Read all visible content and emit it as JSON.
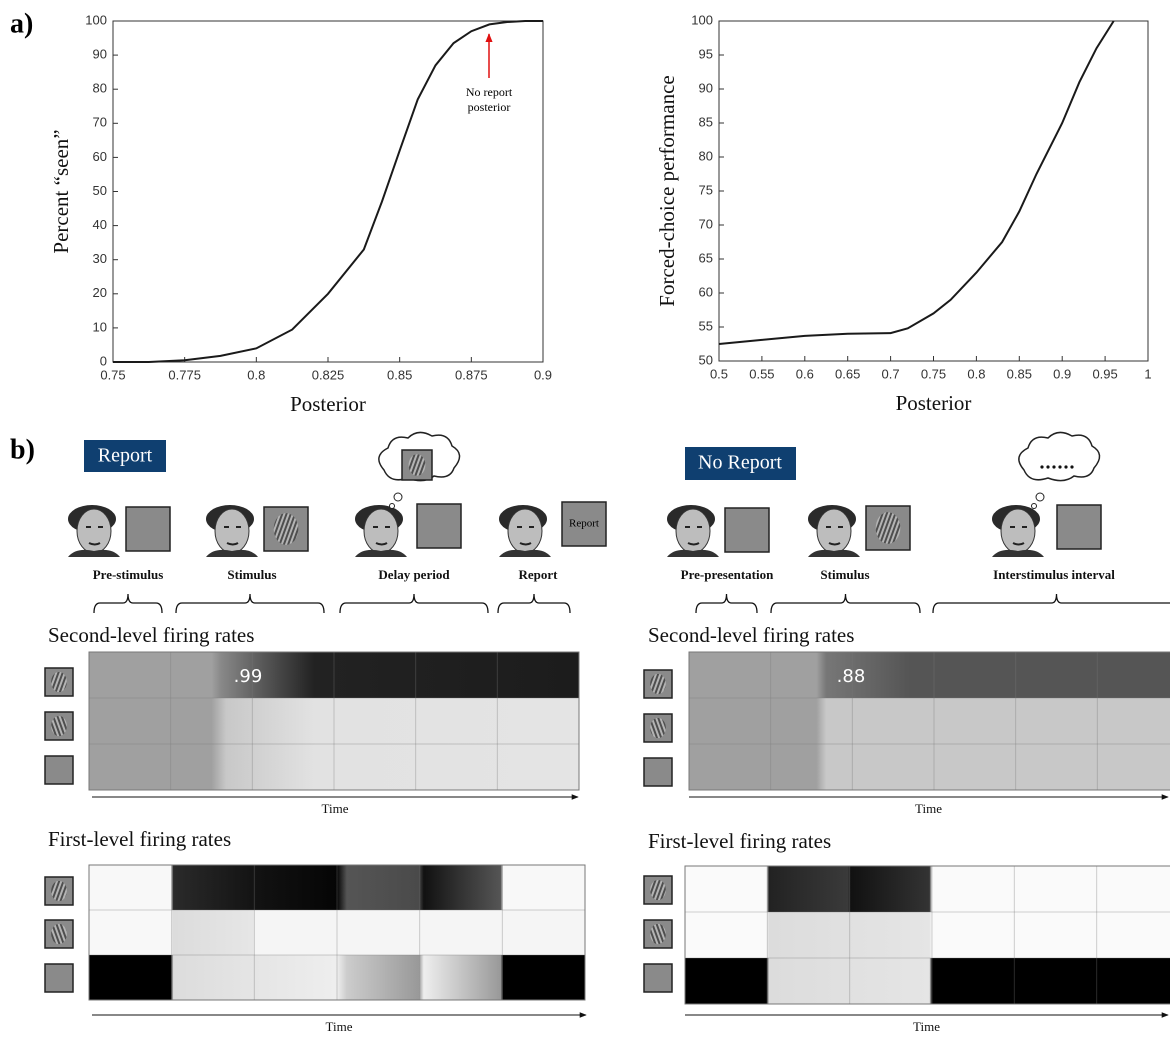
{
  "panel_labels": [
    "a)",
    "b)"
  ],
  "chart_data": [
    {
      "type": "line",
      "x_label": "Posterior",
      "y_label": "Percent “seen”",
      "x": [
        0.75,
        0.7625,
        0.775,
        0.7875,
        0.8,
        0.8125,
        0.825,
        0.8375,
        0.8438,
        0.85,
        0.8563,
        0.8625,
        0.8688,
        0.875,
        0.8813,
        0.8875,
        0.8938,
        0.9
      ],
      "series": [
        {
          "color": "#1a1a1a",
          "values": [
            0,
            0,
            0.5,
            1.8,
            4,
            9.5,
            20,
            33,
            47,
            62,
            77,
            87,
            93.5,
            97,
            99,
            99.7,
            100,
            100
          ]
        }
      ],
      "xlim": [
        0.75,
        0.9
      ],
      "ylim": [
        0,
        100
      ],
      "xticks": [
        0.75,
        0.775,
        0.8,
        0.825,
        0.85,
        0.875,
        0.9
      ],
      "yticks": [
        0,
        10,
        20,
        30,
        40,
        50,
        60,
        70,
        80,
        90,
        100
      ],
      "annotation": [
        "No report",
        "posterior"
      ],
      "annotation_color": "#e01010"
    },
    {
      "type": "line",
      "x_label": "Posterior",
      "y_label": "Forced-choice performance",
      "x": [
        0.5,
        0.55,
        0.6,
        0.65,
        0.7,
        0.72,
        0.75,
        0.77,
        0.8,
        0.83,
        0.85,
        0.87,
        0.9,
        0.92,
        0.94,
        0.96
      ],
      "series": [
        {
          "color": "#1a1a1a",
          "values": [
            52.5,
            53.1,
            53.7,
            54,
            54.1,
            54.8,
            57,
            59,
            63,
            67.5,
            72,
            77.5,
            85,
            91,
            96,
            100
          ]
        }
      ],
      "xlim": [
        0.5,
        1
      ],
      "ylim": [
        50,
        100
      ],
      "xticks": [
        0.5,
        0.55,
        0.6,
        0.65,
        0.7,
        0.75,
        0.8,
        0.85,
        0.9,
        0.95,
        1
      ],
      "yticks": [
        50,
        55,
        60,
        65,
        70,
        75,
        80,
        85,
        90,
        95,
        100
      ]
    }
  ],
  "report": {
    "tag": "Report",
    "report_screen": "Report",
    "phases": [
      "Pre-stimulus",
      "Stimulus",
      "Delay period",
      "Report"
    ],
    "second_level": {
      "title": "Second-level firing rates",
      "peak_label": ".99",
      "x_label": "Time"
    },
    "first_level": {
      "title": "First-level firing rates",
      "x_label": "Time"
    }
  },
  "no_report": {
    "tag": "No Report",
    "phases": [
      "Pre-presentation",
      "Stimulus",
      "Interstimulus interval"
    ],
    "second_level": {
      "title": "Second-level firing rates",
      "peak_label": ".88",
      "x_label": "Time"
    },
    "first_level": {
      "title": "First-level firing rates",
      "x_label": "Time"
    }
  }
}
